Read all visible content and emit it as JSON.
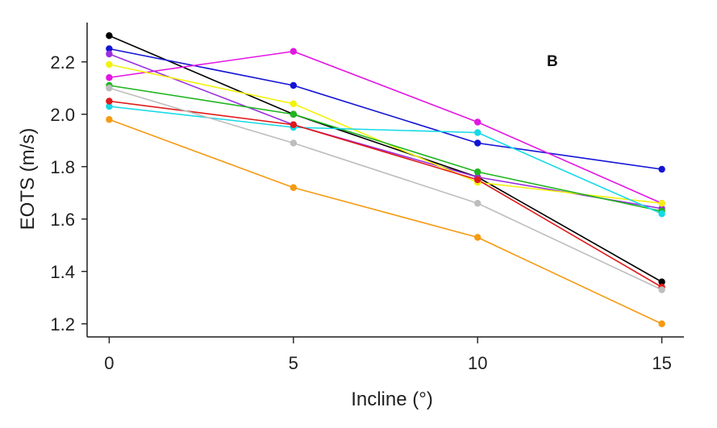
{
  "chart_data": {
    "type": "line",
    "title": "",
    "panel_label": "B",
    "xlabel": "Incline (°)",
    "ylabel": "EOTS (m/s)",
    "x": [
      0,
      5,
      10,
      15
    ],
    "xlim": [
      -0.6,
      15.6
    ],
    "ylim": [
      1.15,
      2.35
    ],
    "xticks": [
      0,
      5,
      10,
      15
    ],
    "yticks": [
      1.2,
      1.4,
      1.6,
      1.8,
      2.0,
      2.2
    ],
    "xtick_labels": [
      "0",
      "5",
      "10",
      "15"
    ],
    "ytick_labels": [
      "1.2",
      "1.4",
      "1.6",
      "1.8",
      "2.0",
      "2.2"
    ],
    "grid": false,
    "legend": "none",
    "series": [
      {
        "name": "black",
        "color": "#000000",
        "values": [
          2.3,
          2.0,
          1.76,
          1.36
        ]
      },
      {
        "name": "blue",
        "color": "#1414d6",
        "values": [
          2.25,
          2.11,
          1.89,
          1.79
        ]
      },
      {
        "name": "magenta",
        "color": "#e316e3",
        "values": [
          2.14,
          2.24,
          1.97,
          1.66
        ]
      },
      {
        "name": "purple",
        "color": "#9b2ee0",
        "values": [
          2.23,
          1.96,
          1.76,
          1.64
        ]
      },
      {
        "name": "yellow",
        "color": "#f2f20a",
        "values": [
          2.19,
          2.04,
          1.74,
          1.66
        ]
      },
      {
        "name": "green",
        "color": "#1fb51f",
        "values": [
          2.11,
          2.0,
          1.78,
          1.63
        ]
      },
      {
        "name": "cyan",
        "color": "#14d9e8",
        "values": [
          2.03,
          1.95,
          1.93,
          1.62
        ]
      },
      {
        "name": "red",
        "color": "#e01a1a",
        "values": [
          2.05,
          1.96,
          1.75,
          1.34
        ]
      },
      {
        "name": "gray",
        "color": "#bdbdbd",
        "values": [
          2.1,
          1.89,
          1.66,
          1.33
        ]
      },
      {
        "name": "orange",
        "color": "#f59a12",
        "values": [
          1.98,
          1.72,
          1.53,
          1.2
        ]
      }
    ]
  }
}
